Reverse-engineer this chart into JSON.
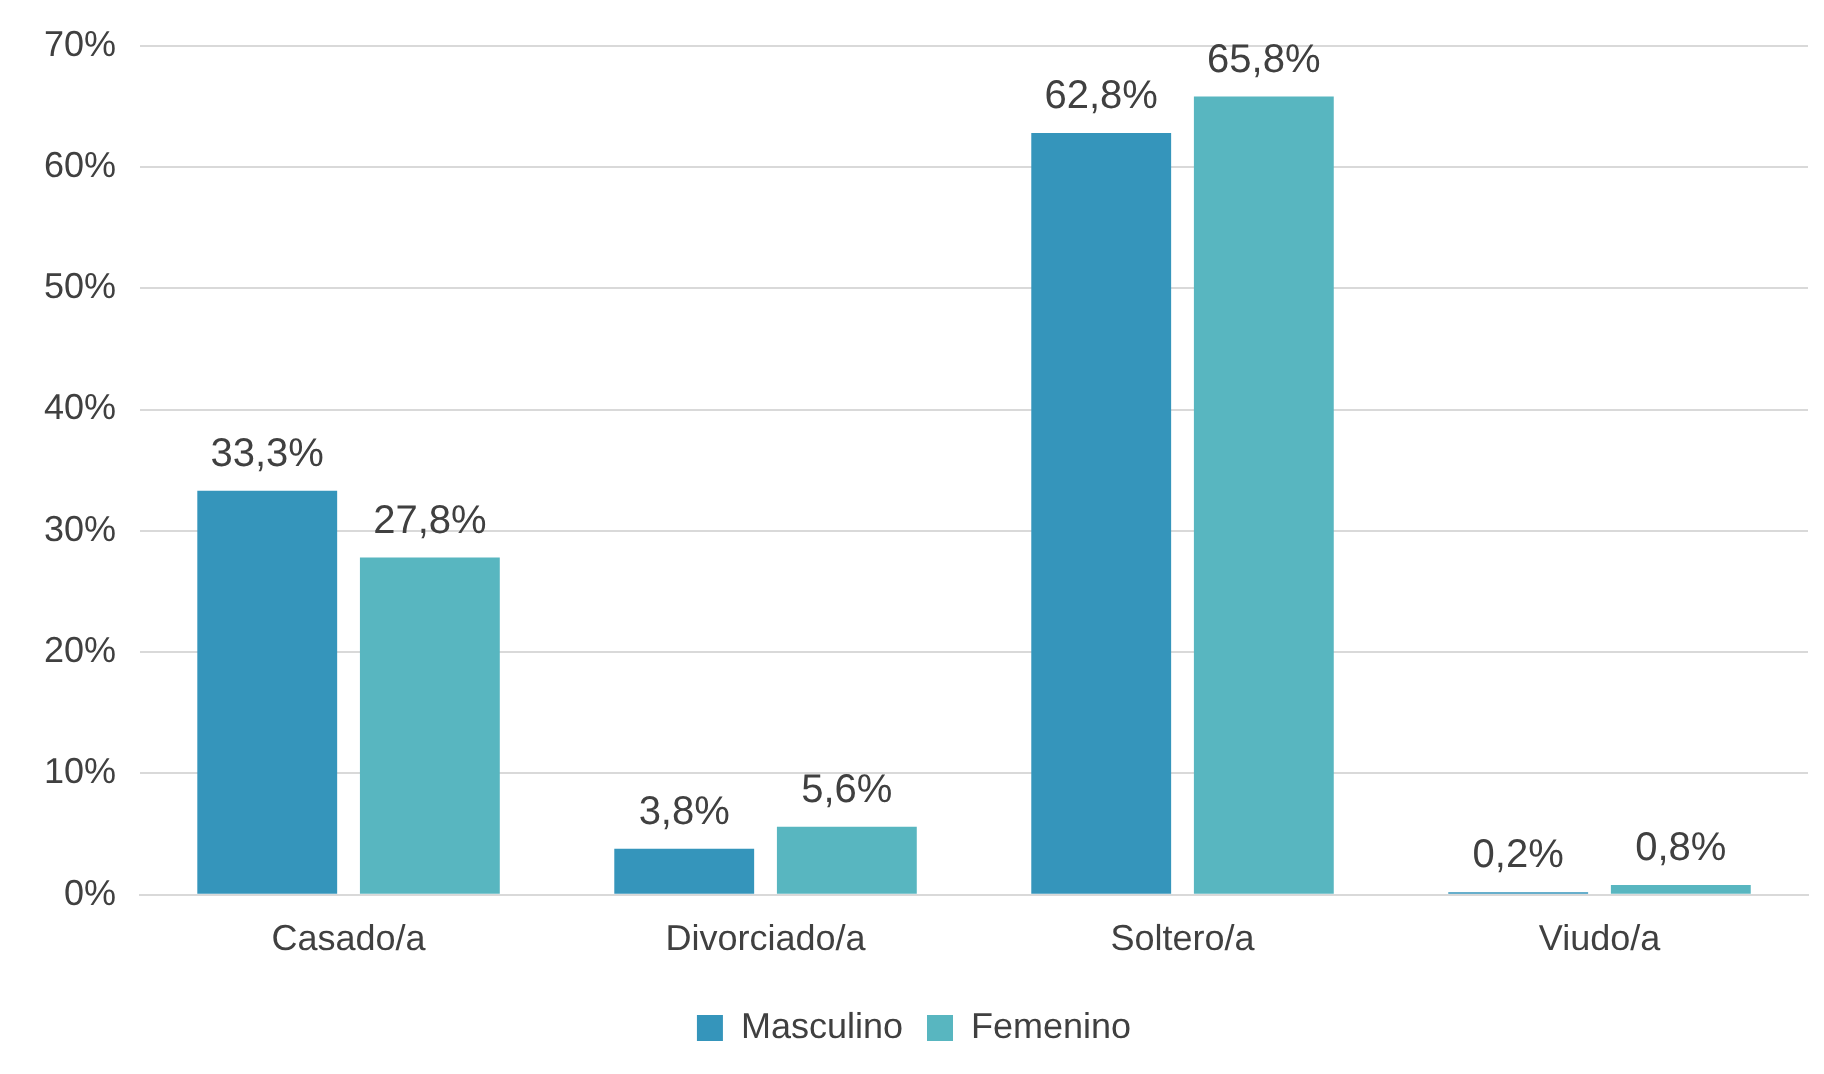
{
  "chart_data": {
    "type": "bar",
    "categories": [
      "Casado/a",
      "Divorciado/a",
      "Soltero/a",
      "Viudo/a"
    ],
    "series": [
      {
        "name": "Masculino",
        "color": "#3595bb",
        "values": [
          33.3,
          3.8,
          62.8,
          0.2
        ],
        "value_labels": [
          "33,3%",
          "3,8%",
          "62,8%",
          "0,2%"
        ]
      },
      {
        "name": "Femenino",
        "color": "#58b6c0",
        "values": [
          27.8,
          5.6,
          65.8,
          0.8
        ],
        "value_labels": [
          "27,8%",
          "5,6%",
          "65,8%",
          "0,8%"
        ]
      }
    ],
    "ylim": [
      0,
      70
    ],
    "yticks": [
      {
        "value": 0,
        "label": "0%"
      },
      {
        "value": 10,
        "label": "10%"
      },
      {
        "value": 20,
        "label": "20%"
      },
      {
        "value": 30,
        "label": "30%"
      },
      {
        "value": 40,
        "label": "40%"
      },
      {
        "value": 50,
        "label": "50%"
      },
      {
        "value": 60,
        "label": "60%"
      },
      {
        "value": 70,
        "label": "70%"
      }
    ],
    "grid": "y",
    "legend": "bottom"
  }
}
